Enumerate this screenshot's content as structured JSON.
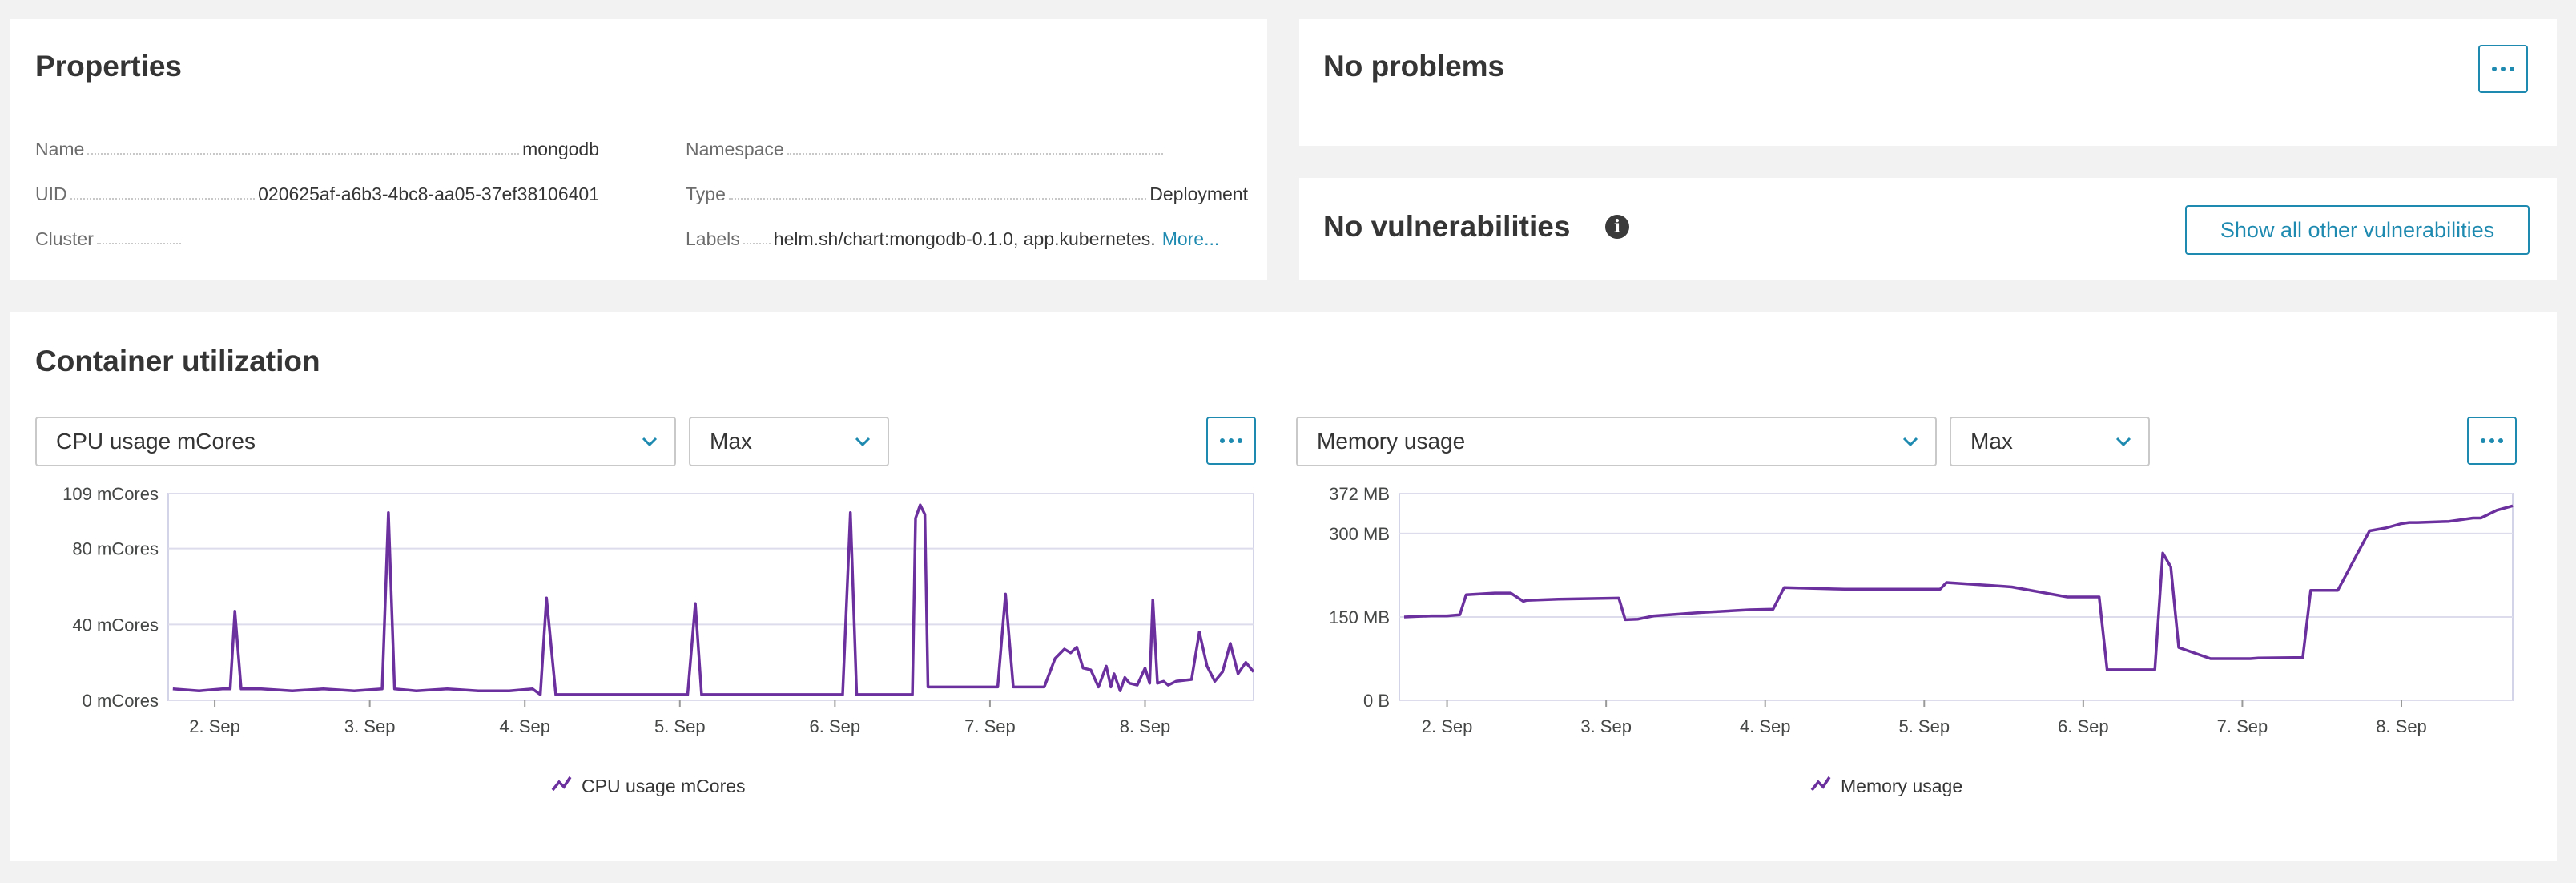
{
  "properties": {
    "title": "Properties",
    "left": [
      {
        "key": "Name",
        "value": "mongodb"
      },
      {
        "key": "UID",
        "value": "020625af-a6b3-4bc8-aa05-37ef38106401"
      },
      {
        "key": "Cluster",
        "value": ""
      }
    ],
    "right": [
      {
        "key": "Namespace",
        "value": ""
      },
      {
        "key": "Type",
        "value": "Deployment"
      },
      {
        "key": "Labels",
        "value": "helm.sh/chart:mongodb-0.1.0, app.kubernetes."
      }
    ],
    "more_label": "More..."
  },
  "problems": {
    "title": "No problems"
  },
  "vulnerabilities": {
    "title": "No vulnerabilities",
    "button_label": "Show all other vulnerabilities"
  },
  "utilization": {
    "title": "Container utilization",
    "cpu": {
      "metric_select": "CPU usage mCores",
      "agg_select": "Max",
      "legend": "CPU usage mCores"
    },
    "memory": {
      "metric_select": "Memory usage",
      "agg_select": "Max",
      "legend": "Memory usage"
    }
  },
  "colors": {
    "accent": "#1f8ab0",
    "series": "#6b2f9e"
  },
  "chart_data": [
    {
      "type": "line",
      "name": "cpu-chart",
      "categories": [
        "2. Sep",
        "3. Sep",
        "4. Sep",
        "5. Sep",
        "6. Sep",
        "7. Sep",
        "8. Sep"
      ],
      "y_ticks": [
        "0 mCores",
        "40 mCores",
        "80 mCores",
        "109 mCores"
      ],
      "ylim": [
        0,
        109
      ],
      "xlim": [
        1.7,
        8.7
      ],
      "grid": true,
      "legend_position": "bottom-center",
      "series": [
        {
          "name": "CPU usage mCores",
          "x": [
            1.73,
            1.9,
            2.05,
            2.1,
            2.13,
            2.17,
            2.3,
            2.5,
            2.7,
            2.9,
            3.08,
            3.12,
            3.16,
            3.3,
            3.5,
            3.7,
            3.9,
            4.05,
            4.1,
            4.14,
            4.2,
            4.5,
            4.9,
            5.05,
            5.1,
            5.14,
            5.3,
            5.6,
            6.05,
            6.1,
            6.14,
            6.5,
            6.52,
            6.55,
            6.58,
            6.6,
            6.62,
            6.9,
            7.05,
            7.1,
            7.15,
            7.35,
            7.42,
            7.48,
            7.52,
            7.56,
            7.6,
            7.65,
            7.7,
            7.75,
            7.78,
            7.8,
            7.84,
            7.87,
            7.9,
            7.95,
            8.0,
            8.03,
            8.05,
            8.08,
            8.12,
            8.15,
            8.2,
            8.3,
            8.35,
            8.4,
            8.45,
            8.5,
            8.55,
            8.6,
            8.65,
            8.7
          ],
          "y": [
            6,
            5,
            6,
            6,
            47,
            6,
            6,
            5,
            6,
            5,
            6,
            99,
            6,
            5,
            6,
            5,
            5,
            6,
            3,
            54,
            3,
            3,
            3,
            3,
            51,
            3,
            3,
            3,
            3,
            99,
            3,
            3,
            96,
            103,
            98,
            7,
            7,
            7,
            7,
            56,
            7,
            7,
            22,
            27,
            25,
            28,
            17,
            16,
            7,
            18,
            7,
            14,
            5,
            12,
            9,
            8,
            17,
            9,
            53,
            9,
            10,
            8,
            10,
            11,
            36,
            18,
            10,
            15,
            30,
            14,
            20,
            15
          ]
        }
      ]
    },
    {
      "type": "line",
      "name": "memory-chart",
      "categories": [
        "2. Sep",
        "3. Sep",
        "4. Sep",
        "5. Sep",
        "6. Sep",
        "7. Sep",
        "8. Sep"
      ],
      "y_ticks": [
        "0 B",
        "150 MB",
        "300 MB",
        "372 MB"
      ],
      "ylim": [
        0,
        372
      ],
      "xlim": [
        1.7,
        8.7
      ],
      "grid": true,
      "legend_position": "bottom-center",
      "series": [
        {
          "name": "Memory usage",
          "x": [
            1.73,
            1.9,
            2.0,
            2.08,
            2.12,
            2.3,
            2.4,
            2.48,
            2.5,
            2.7,
            3.08,
            3.12,
            3.2,
            3.3,
            3.6,
            3.9,
            4.05,
            4.12,
            4.5,
            5.05,
            5.1,
            5.14,
            5.5,
            5.55,
            5.9,
            6.1,
            6.15,
            6.4,
            6.45,
            6.5,
            6.55,
            6.6,
            6.8,
            7.05,
            7.1,
            7.38,
            7.43,
            7.5,
            7.6,
            7.8,
            7.9,
            8.0,
            8.05,
            8.1,
            8.3,
            8.45,
            8.5,
            8.6,
            8.7
          ],
          "y": [
            150,
            152,
            152,
            154,
            190,
            193,
            193,
            178,
            180,
            182,
            184,
            145,
            146,
            152,
            158,
            163,
            164,
            203,
            200,
            200,
            200,
            212,
            205,
            204,
            186,
            186,
            55,
            55,
            55,
            265,
            240,
            95,
            75,
            75,
            76,
            77,
            198,
            198,
            198,
            305,
            310,
            318,
            320,
            320,
            322,
            328,
            328,
            342,
            350
          ]
        }
      ]
    }
  ]
}
